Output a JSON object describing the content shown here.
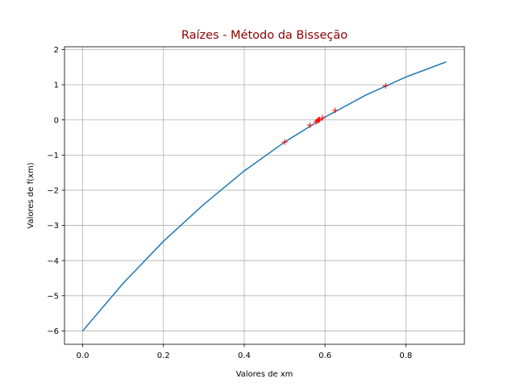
{
  "chart_data": {
    "type": "line",
    "title": "Raízes - Método da Bisseção",
    "title_color": "#8b0000",
    "xlabel": "Valores de xm",
    "ylabel": "Valores de f(xm)",
    "xlim": [
      -0.045,
      0.945
    ],
    "ylim": [
      -6.38,
      2.08
    ],
    "xticks": [
      0.0,
      0.2,
      0.4,
      0.6,
      0.8
    ],
    "xtick_labels": [
      "0.0",
      "0.2",
      "0.4",
      "0.6",
      "0.8"
    ],
    "yticks": [
      -6,
      -5,
      -4,
      -3,
      -2,
      -1,
      0,
      1,
      2
    ],
    "ytick_labels": [
      "−6",
      "−5",
      "−4",
      "−3",
      "−2",
      "−1",
      "0",
      "1",
      "2"
    ],
    "grid": true,
    "series": [
      {
        "kind": "line",
        "color": "#1f77b4",
        "x": [
          0.0,
          0.1,
          0.2,
          0.3,
          0.4,
          0.5,
          0.6,
          0.7,
          0.8,
          0.9
        ],
        "y": [
          -6.0,
          -4.65,
          -3.45,
          -2.4,
          -1.45,
          -0.63,
          0.08,
          0.7,
          1.22,
          1.65
        ]
      },
      {
        "kind": "marker",
        "marker": "+",
        "color": "#ff0000",
        "x": [
          0.5,
          0.75,
          0.5625,
          0.625,
          0.59375,
          0.578125,
          0.5859,
          0.582,
          0.584,
          0.585
        ],
        "y": [
          -0.63,
          0.97,
          -0.15,
          0.27,
          0.06,
          -0.05,
          0.01,
          -0.02,
          -0.005,
          0.003
        ]
      }
    ]
  }
}
